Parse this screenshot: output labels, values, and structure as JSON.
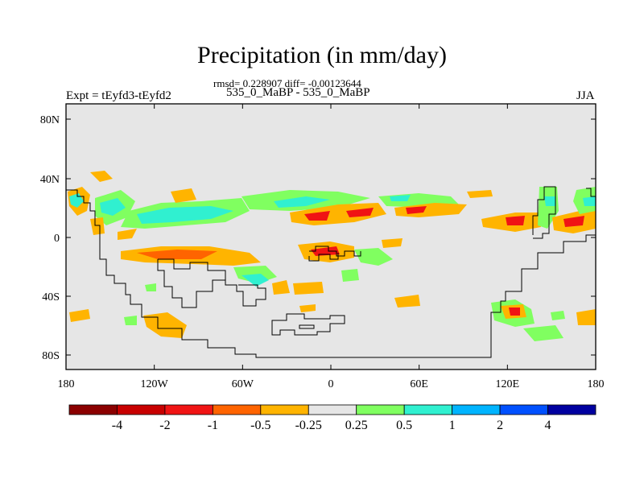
{
  "header": {
    "title": "Precipitation (in mm/day)",
    "stats": "rmsd= 0.228907 diff= -0.00123644",
    "expt": "Expt = tEyfd3-tEyfd2",
    "case": "535_0_MaBP - 535_0_MaBP",
    "season": "JJA"
  },
  "map": {
    "background_color": "#e6e6e6",
    "lon_ticks": [
      "180",
      "120W",
      "60W",
      "0",
      "60E",
      "120E",
      "180"
    ],
    "lat_ticks": [
      "80N",
      "40N",
      "0",
      "40S",
      "80S"
    ]
  },
  "colorbar": {
    "colors": [
      "#8b0000",
      "#c80000",
      "#f01414",
      "#ff6400",
      "#ffb400",
      "#e6e6e6",
      "#80ff60",
      "#30f0d0",
      "#00b4ff",
      "#0050ff",
      "#0000a0"
    ],
    "labels": [
      "-4",
      "-2",
      "-1",
      "-0.5",
      "-0.25",
      "0.25",
      "0.5",
      "1",
      "2",
      "4"
    ]
  }
}
